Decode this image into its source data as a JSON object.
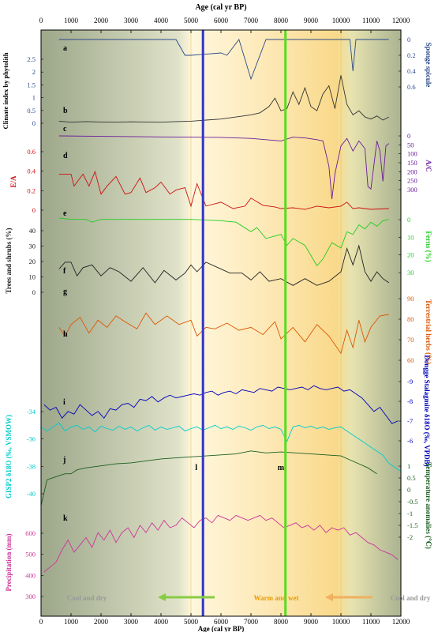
{
  "figure": {
    "top_axis_title": "Age (cal yr BP)",
    "bottom_axis_title": "Age (cal yr BP)",
    "age_ticks": [
      "0",
      "1000",
      "2000",
      "3000",
      "4000",
      "5000",
      "6000",
      "7000",
      "8000",
      "9000",
      "10000",
      "11000",
      "12000"
    ],
    "marker_lines": [
      {
        "label": "l",
        "age": 5400,
        "color": "#3333cc"
      },
      {
        "label": "m",
        "age": 8150,
        "color": "#55dd22"
      }
    ],
    "phases": [
      {
        "label": "Cool and dry",
        "color": "#999999",
        "arrow": "left",
        "arrow_color": "#88cc44"
      },
      {
        "label": "Warm and wet",
        "color": "#e89a00"
      },
      {
        "label": "Cool and dry",
        "color": "#999999",
        "arrow": "left",
        "arrow_color": "#f0b060"
      }
    ]
  },
  "chart_data": [
    {
      "id": "a",
      "type": "line",
      "color": "#2b4a8a",
      "left_label": "Climate index by phytolith",
      "right_label": "Sponge spicule",
      "left_ticks": [
        "2.5",
        "2",
        "1.5",
        "1",
        "0.5",
        "0"
      ],
      "right_ticks": [
        "0",
        "0.2",
        "0.4",
        "0.6"
      ],
      "ylim": [
        0,
        0.6
      ],
      "inverted": true,
      "x": [
        600,
        4500,
        4800,
        5000,
        6000,
        6200,
        6600,
        7000,
        7500,
        7600,
        8000,
        8400,
        8500,
        9000,
        10000,
        10300,
        10400,
        10500,
        11600
      ],
      "y": [
        0,
        0,
        0.2,
        0.2,
        0.17,
        0.2,
        0,
        0.5,
        0,
        0,
        0,
        0,
        0,
        0,
        0,
        0,
        0.4,
        0,
        0
      ]
    },
    {
      "id": "b",
      "type": "line",
      "color": "#333333",
      "ylim": [
        0,
        2.5
      ],
      "x": [
        600,
        1000,
        1500,
        2000,
        2500,
        3000,
        3500,
        4000,
        4500,
        5000,
        5500,
        6000,
        6500,
        7000,
        7300,
        7600,
        7800,
        8000,
        8200,
        8400,
        8600,
        8800,
        9000,
        9200,
        9400,
        9600,
        9800,
        10000,
        10200,
        10400,
        10600,
        10800,
        11000,
        11200,
        11400,
        11600
      ],
      "y": [
        0.1,
        0.05,
        0.08,
        0.06,
        0.05,
        0.07,
        0.06,
        0.05,
        0.08,
        0.1,
        0.15,
        0.2,
        0.3,
        0.4,
        0.5,
        0.8,
        1.2,
        0.6,
        0.7,
        1.5,
        0.9,
        1.7,
        0.8,
        0.6,
        1.4,
        1.8,
        0.7,
        2.3,
        0.9,
        0.4,
        0.6,
        0.3,
        0.2,
        0.35,
        0.15,
        0.3
      ]
    },
    {
      "id": "c",
      "type": "line",
      "color": "#6a1b9a",
      "right_label": "A/C",
      "right_ticks": [
        "0",
        "50",
        "100",
        "150",
        "200",
        "250",
        "300"
      ],
      "ylim": [
        0,
        300
      ],
      "inverted": true,
      "x": [
        600,
        2000,
        4000,
        6000,
        7000,
        8000,
        8400,
        8800,
        9200,
        9400,
        9600,
        9700,
        9800,
        10000,
        10200,
        10400,
        10600,
        10800,
        10900,
        11000,
        11200,
        11300,
        11400,
        11500,
        11600
      ],
      "y": [
        0,
        2,
        4,
        6,
        10,
        20,
        5,
        8,
        15,
        20,
        120,
        250,
        150,
        40,
        10,
        60,
        20,
        50,
        200,
        210,
        20,
        60,
        180,
        40,
        30
      ]
    },
    {
      "id": "d",
      "type": "line",
      "color": "#cc1111",
      "left_label": "E/A",
      "left_ticks": [
        "0.6",
        "0.4",
        "0.2",
        "0"
      ],
      "ylim": [
        0,
        0.7
      ],
      "x": [
        600,
        800,
        1000,
        1100,
        1200,
        1400,
        1600,
        1800,
        2000,
        2200,
        2500,
        2800,
        3000,
        3300,
        3500,
        3800,
        4000,
        4300,
        4500,
        4800,
        5000,
        5200,
        5500,
        5800,
        6000,
        6400,
        6800,
        7000,
        7400,
        7800,
        8000,
        8400,
        8800,
        9200,
        9600,
        10000,
        10200,
        10400,
        10600,
        11000,
        11600
      ],
      "y": [
        0.45,
        0.45,
        0.45,
        0.3,
        0.35,
        0.45,
        0.3,
        0.48,
        0.2,
        0.3,
        0.42,
        0.2,
        0.22,
        0.4,
        0.22,
        0.28,
        0.35,
        0.2,
        0.25,
        0.28,
        0.05,
        0.33,
        0.05,
        0.08,
        0.1,
        0.02,
        0.05,
        0.15,
        0.06,
        0.04,
        0.02,
        0.03,
        0.01,
        0.05,
        0.03,
        0.05,
        0.1,
        0.02,
        0.03,
        0.01,
        0.02
      ]
    },
    {
      "id": "e",
      "type": "line",
      "color": "#22cc22",
      "right_label": "Ferns (%)",
      "right_ticks": [
        "0",
        "10",
        "20",
        "30"
      ],
      "ylim": [
        0,
        40
      ],
      "inverted": true,
      "x": [
        600,
        1000,
        1500,
        1700,
        2000,
        3000,
        4000,
        5000,
        6000,
        6500,
        7000,
        7200,
        7500,
        8000,
        8200,
        8400,
        8800,
        9200,
        9400,
        9700,
        10000,
        10200,
        10400,
        10600,
        10800,
        11000,
        11200,
        11400,
        11600
      ],
      "y": [
        0,
        1,
        1,
        3,
        1,
        1,
        1,
        1,
        2,
        3,
        10,
        7,
        15,
        12,
        20,
        15,
        20,
        35,
        30,
        18,
        22,
        10,
        12,
        5,
        8,
        3,
        6,
        2,
        1
      ]
    },
    {
      "id": "f",
      "type": "line",
      "color": "#222222",
      "left_label": "Trees and shrubs (%)",
      "left_ticks": [
        "40",
        "30",
        "20",
        "10",
        "0"
      ],
      "ylim": [
        0,
        45
      ],
      "x": [
        600,
        800,
        1000,
        1200,
        1400,
        1700,
        2000,
        2300,
        2600,
        3000,
        3400,
        3800,
        4100,
        4500,
        4800,
        5000,
        5200,
        5500,
        5900,
        6300,
        6700,
        7000,
        7300,
        7600,
        8000,
        8400,
        8800,
        9200,
        9600,
        10000,
        10200,
        10400,
        10600,
        10800,
        11000,
        11200,
        11400,
        11600
      ],
      "y": [
        17,
        22,
        22,
        12,
        18,
        20,
        12,
        18,
        15,
        8,
        18,
        7,
        16,
        9,
        14,
        20,
        15,
        22,
        18,
        14,
        14,
        9,
        15,
        8,
        10,
        5,
        10,
        5,
        8,
        15,
        32,
        20,
        34,
        15,
        8,
        15,
        10,
        7
      ]
    },
    {
      "id": "g",
      "type": "line",
      "color": "#dd5500",
      "right_label": "Terrestrial herbs (%)",
      "right_ticks": [
        "90",
        "80",
        "70",
        "60"
      ],
      "ylim": [
        55,
        100
      ],
      "x": [
        600,
        800,
        1000,
        1300,
        1600,
        1900,
        2200,
        2500,
        2800,
        3200,
        3500,
        3800,
        4200,
        4600,
        5000,
        5200,
        5500,
        5800,
        6200,
        6600,
        7000,
        7400,
        7800,
        8000,
        8400,
        8800,
        9200,
        9600,
        10000,
        10200,
        10400,
        10600,
        10800,
        11000,
        11300,
        11600
      ],
      "y": [
        80,
        74,
        82,
        87,
        76,
        85,
        80,
        88,
        84,
        79,
        90,
        82,
        88,
        82,
        85,
        74,
        80,
        79,
        83,
        78,
        80,
        75,
        84,
        72,
        80,
        70,
        82,
        74,
        62,
        78,
        66,
        85,
        70,
        80,
        88,
        89
      ]
    },
    {
      "id": "h",
      "type": "line",
      "color": "#0000bb",
      "right_label": "Dongge Stalagmite δ18O (‰, VPDB)",
      "right_ticks": [
        "-9",
        "-8",
        "-7",
        "-6"
      ],
      "ylim": [
        -10,
        -5.5
      ],
      "inverted": true,
      "x": [
        100,
        300,
        500,
        700,
        900,
        1100,
        1300,
        1500,
        1700,
        1900,
        2100,
        2300,
        2500,
        2700,
        2900,
        3100,
        3300,
        3500,
        3700,
        3900,
        4100,
        4300,
        4500,
        4700,
        4900,
        5100,
        5300,
        5500,
        5700,
        5900,
        6100,
        6300,
        6500,
        6700,
        6900,
        7100,
        7300,
        7500,
        7700,
        7900,
        8100,
        8300,
        8500,
        8700,
        8900,
        9100,
        9300,
        9500,
        9700,
        9900,
        10100,
        10300,
        10500,
        10700,
        10900,
        11100,
        11300,
        11500,
        11700,
        11900
      ],
      "y": [
        -8,
        -7.6,
        -7.8,
        -7,
        -7.5,
        -7.3,
        -8,
        -7.6,
        -7.2,
        -7.5,
        -7,
        -7.7,
        -7.6,
        -8,
        -8.1,
        -7.8,
        -8.4,
        -8.3,
        -8.6,
        -8.2,
        -8.5,
        -8.7,
        -8.5,
        -8.6,
        -8.7,
        -8.8,
        -8.7,
        -8.9,
        -9,
        -8.7,
        -8.9,
        -9,
        -8.8,
        -9.1,
        -9,
        -8.9,
        -9.2,
        -9.1,
        -9,
        -9.3,
        -9.2,
        -9.1,
        -9.2,
        -9.3,
        -9.1,
        -9.4,
        -9.2,
        -9.1,
        -9.2,
        -9.3,
        -9,
        -9.1,
        -8.8,
        -8.5,
        -8,
        -7.5,
        -7.8,
        -7.2,
        -6.6,
        -6.8
      ]
    },
    {
      "id": "i",
      "type": "line",
      "color": "#00cccc",
      "left_label": "GISP2 δ18O (‰, VSMOW)",
      "left_ticks": [
        "-34",
        "-36",
        "-38",
        "-40"
      ],
      "ylim": [
        -42,
        -33
      ],
      "x": [
        0,
        200,
        400,
        600,
        800,
        1000,
        1200,
        1400,
        1600,
        1800,
        2000,
        2200,
        2400,
        2600,
        2800,
        3000,
        3200,
        3400,
        3600,
        3800,
        4000,
        4200,
        4400,
        4600,
        4800,
        5000,
        5200,
        5400,
        5600,
        5800,
        6000,
        6200,
        6400,
        6600,
        6800,
        7000,
        7200,
        7400,
        7600,
        7800,
        8000,
        8200,
        8400,
        8600,
        8800,
        9000,
        9200,
        9400,
        9600,
        9800,
        10000,
        10200,
        10400,
        10600,
        10800,
        11000,
        11200,
        11400,
        11600,
        11800,
        12000
      ],
      "y": [
        -35,
        -35.5,
        -35,
        -34.5,
        -35.5,
        -35,
        -34.8,
        -35.3,
        -35,
        -35.6,
        -34.9,
        -35.2,
        -35.4,
        -34.9,
        -35.3,
        -35,
        -35.5,
        -35.1,
        -34.8,
        -35.4,
        -35,
        -35.3,
        -35.1,
        -34.9,
        -35.5,
        -35.2,
        -35,
        -35.4,
        -35.1,
        -34.8,
        -35.2,
        -35,
        -35.3,
        -34.9,
        -35.1,
        -35.4,
        -35,
        -34.8,
        -35.2,
        -35,
        -35.3,
        -36.8,
        -35,
        -34.8,
        -35.1,
        -34.9,
        -35.2,
        -35,
        -35.3,
        -35.1,
        -35,
        -35.5,
        -36,
        -36.5,
        -37,
        -37.5,
        -38,
        -38.5,
        -39.5,
        -40,
        -40.5
      ]
    },
    {
      "id": "j",
      "type": "line",
      "color": "#1a5e20",
      "right_label": "Temperature anomalies (℃)",
      "right_ticks": [
        "1",
        "0.5",
        "0",
        "-0.5",
        "-1",
        "-1.5",
        "-2"
      ],
      "ylim": [
        -2.2,
        1.3
      ],
      "x": [
        0,
        200,
        400,
        600,
        800,
        1000,
        1200,
        1500,
        2000,
        2500,
        3000,
        3500,
        4000,
        4500,
        5000,
        5500,
        6000,
        6500,
        7000,
        7500,
        8000,
        8500,
        9000,
        9500,
        10000,
        10300,
        10600,
        10900,
        11200
      ],
      "y": [
        -1.8,
        -0.5,
        -0.4,
        -0.3,
        -0.2,
        -0.2,
        0,
        0.1,
        0.2,
        0.3,
        0.35,
        0.45,
        0.55,
        0.6,
        0.65,
        0.7,
        0.75,
        0.8,
        0.95,
        0.85,
        0.9,
        0.85,
        0.8,
        0.75,
        0.7,
        0.5,
        0.3,
        0.1,
        -0.2
      ]
    },
    {
      "id": "k",
      "type": "line",
      "color": "#cc3399",
      "left_label": "Precipitation (mm)",
      "left_ticks": [
        "600",
        "500",
        "400",
        "300"
      ],
      "ylim": [
        290,
        650
      ],
      "x": [
        100,
        300,
        500,
        700,
        900,
        1100,
        1300,
        1500,
        1700,
        1900,
        2100,
        2300,
        2500,
        2700,
        2900,
        3100,
        3300,
        3500,
        3700,
        3900,
        4100,
        4300,
        4500,
        4700,
        4900,
        5100,
        5300,
        5500,
        5700,
        5900,
        6100,
        6300,
        6500,
        6700,
        6900,
        7100,
        7300,
        7500,
        7700,
        7900,
        8100,
        8300,
        8500,
        8700,
        8900,
        9100,
        9300,
        9500,
        9700,
        9900,
        10100,
        10300,
        10500,
        10700,
        10900,
        11100,
        11300,
        11500,
        11700,
        11900
      ],
      "y": [
        380,
        400,
        420,
        470,
        510,
        460,
        490,
        520,
        480,
        540,
        510,
        550,
        500,
        540,
        560,
        520,
        570,
        540,
        580,
        550,
        590,
        560,
        570,
        600,
        580,
        560,
        590,
        600,
        580,
        610,
        600,
        590,
        610,
        600,
        590,
        600,
        610,
        590,
        600,
        580,
        560,
        570,
        580,
        560,
        570,
        550,
        570,
        540,
        560,
        550,
        560,
        530,
        540,
        520,
        500,
        490,
        470,
        460,
        450,
        430
      ]
    }
  ]
}
